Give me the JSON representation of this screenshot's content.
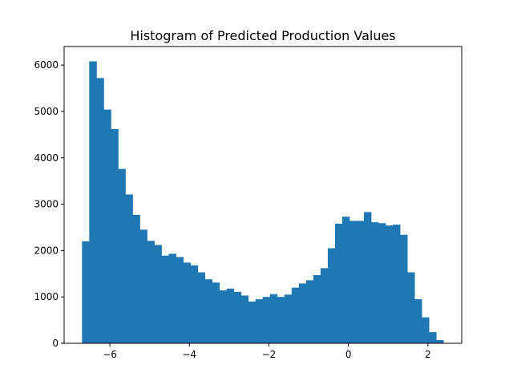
{
  "chart_data": {
    "type": "bar",
    "title": "Histogram of Predicted Production Values",
    "xlabel": "",
    "ylabel": "",
    "xlim": [
      -7.15,
      2.85
    ],
    "ylim": [
      0,
      6400
    ],
    "bar_color": "#1f77b4",
    "grid": false,
    "bin_start": -6.7,
    "bin_width": 0.1818,
    "values": [
      2200,
      6080,
      5720,
      5040,
      4620,
      3760,
      3210,
      2770,
      2450,
      2210,
      2120,
      1890,
      1930,
      1860,
      1740,
      1680,
      1530,
      1380,
      1310,
      1140,
      1180,
      1110,
      1030,
      900,
      950,
      1000,
      1060,
      1000,
      1050,
      1200,
      1290,
      1360,
      1470,
      1620,
      2050,
      2580,
      2730,
      2640,
      2640,
      2830,
      2610,
      2590,
      2540,
      2560,
      2340,
      1530,
      950,
      560,
      240,
      70
    ],
    "x_ticks": [
      {
        "value": -6,
        "label": "−6"
      },
      {
        "value": -4,
        "label": "−4"
      },
      {
        "value": -2,
        "label": "−2"
      },
      {
        "value": 0,
        "label": "0"
      },
      {
        "value": 2,
        "label": "2"
      }
    ],
    "y_ticks": [
      {
        "value": 0,
        "label": "0"
      },
      {
        "value": 1000,
        "label": "1000"
      },
      {
        "value": 2000,
        "label": "2000"
      },
      {
        "value": 3000,
        "label": "3000"
      },
      {
        "value": 4000,
        "label": "4000"
      },
      {
        "value": 5000,
        "label": "5000"
      },
      {
        "value": 6000,
        "label": "6000"
      }
    ]
  }
}
